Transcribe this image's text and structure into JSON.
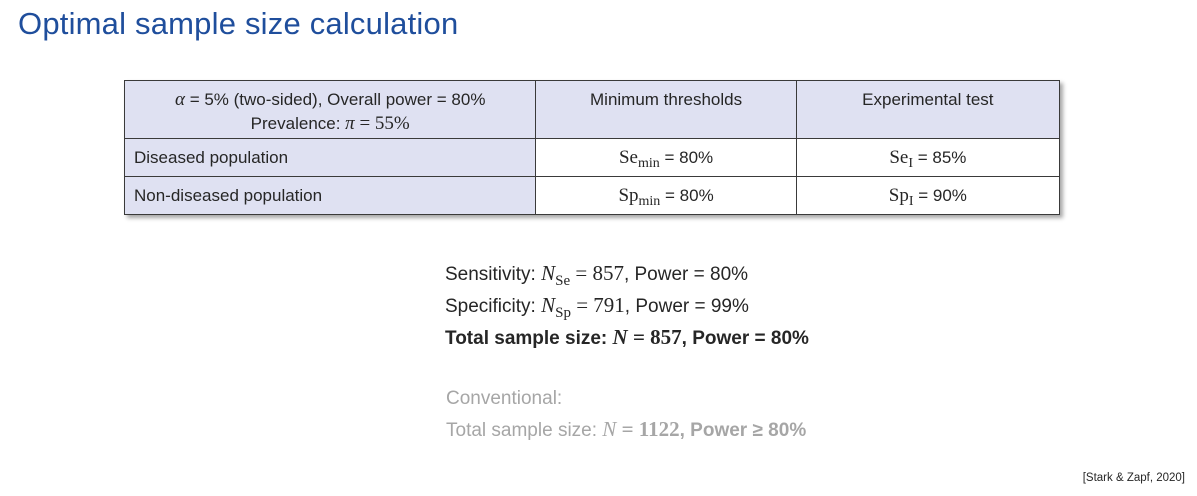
{
  "title": "Optimal sample size calculation",
  "table": {
    "header": {
      "line1_alpha_symbol": "α",
      "line1_text": " = 5% (two-sided), Overall power = 80%",
      "line2_text": "Prevalence: ",
      "line2_pi_symbol": "π",
      "line2_eq": " = 55%",
      "col2": "Minimum thresholds",
      "col3": "Experimental test"
    },
    "rows": [
      {
        "label": "Diseased population",
        "c2_base": "Se",
        "c2_sub": "min",
        "c2_val": " = 80%",
        "c3_base": "Se",
        "c3_sub": "I",
        "c3_val": " = 85%"
      },
      {
        "label": "Non-diseased population",
        "c2_base": "Sp",
        "c2_sub": "min",
        "c2_val": " = 80%",
        "c3_base": "Sp",
        "c3_sub": "I",
        "c3_val": " = 90%"
      }
    ]
  },
  "results": {
    "sens_label": "Sensitivity: ",
    "sens_N": "N",
    "sens_sub": "Se",
    "sens_eq": " = 857",
    "sens_power": ", Power = 80%",
    "spec_label": "Specificity: ",
    "spec_N": "N",
    "spec_sub": "Sp",
    "spec_eq": " = 791",
    "spec_power": ", Power = 99%",
    "total_label": "Total sample size: ",
    "total_N": "N",
    "total_eq": " = 857",
    "total_power": ", Power = 80%"
  },
  "conventional": {
    "label": "Conventional:",
    "total_label": "Total sample size: ",
    "total_N": "N",
    "total_eq": " = 1122",
    "total_power": ", Power ≥ 80%"
  },
  "citation": "[Stark & Zapf, 2020]"
}
